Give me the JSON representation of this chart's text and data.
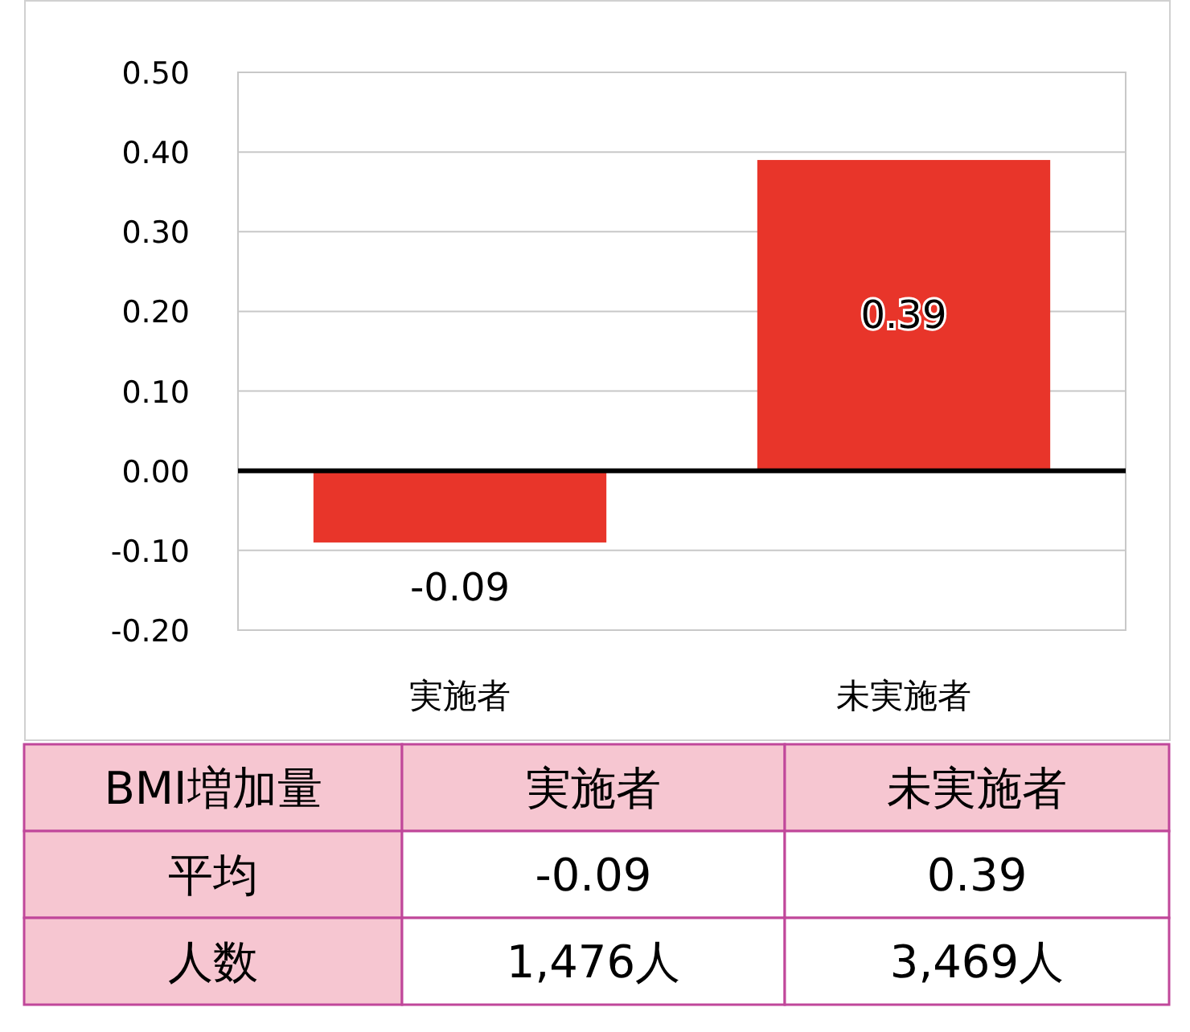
{
  "chart_data": {
    "type": "bar",
    "categories": [
      "実施者",
      "未実施者"
    ],
    "values": [
      -0.09,
      0.39
    ],
    "color": "#e8352a",
    "ylim": [
      -0.2,
      0.5
    ],
    "yticks": [
      {
        "value": -0.2,
        "label": "-0.20"
      },
      {
        "value": -0.1,
        "label": "-0.10"
      },
      {
        "value": 0,
        "label": "0.00"
      },
      {
        "value": 0.1,
        "label": "0.10"
      },
      {
        "value": 0.2,
        "label": "0.20"
      },
      {
        "value": 0.3,
        "label": "0.30"
      },
      {
        "value": 0.4,
        "label": "0.40"
      },
      {
        "value": 0.5,
        "label": "0.50"
      }
    ],
    "grid": "y",
    "value_labels": [
      "-0.09",
      "0.39"
    ],
    "annotations": [
      "BMI増加量",
      "平均",
      "-0.09",
      "0.39",
      "人数",
      "1,476人",
      "3,469人"
    ]
  }
}
